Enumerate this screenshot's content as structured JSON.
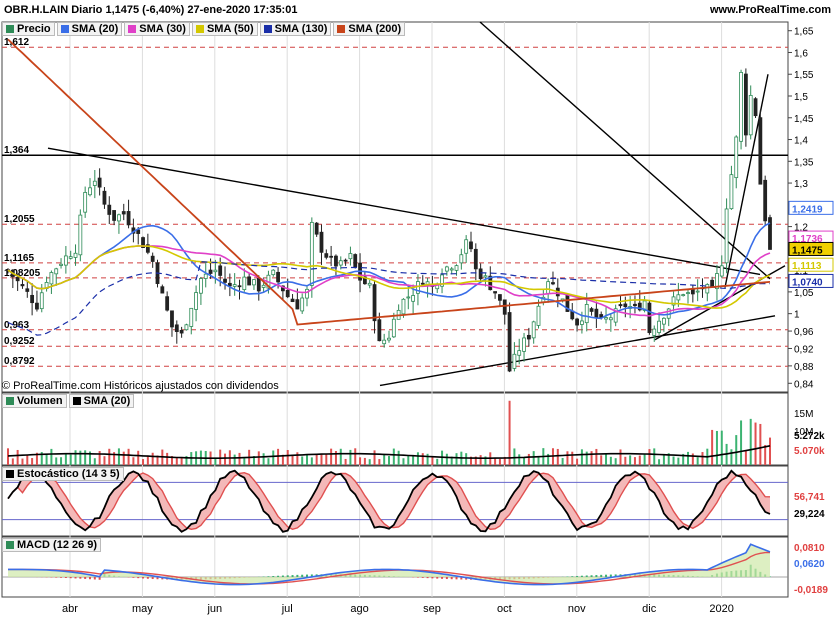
{
  "header": {
    "title": "OBR.H.LAIN Diario 1,1475 (-6,40%) 27-ene-2020 17:35:01",
    "site": "www.ProRealTime.com"
  },
  "copyright": "© ProRealTime.com  Históricos ajustados con dividendos",
  "legend_price": [
    {
      "label": "Precio",
      "color": "#2e8b57"
    },
    {
      "label": "SMA (20)",
      "color": "#3a6ee8"
    },
    {
      "label": "SMA (30)",
      "color": "#e040c8"
    },
    {
      "label": "SMA (50)",
      "color": "#d4c800"
    },
    {
      "label": "SMA (130)",
      "color": "#1a2ea8"
    },
    {
      "label": "SMA (200)",
      "color": "#c8441a"
    }
  ],
  "legend_volume": [
    {
      "label": "Volumen",
      "color": "#2e8b57"
    },
    {
      "label": "SMA (20)",
      "color": "#000000"
    }
  ],
  "legend_stoch": [
    {
      "label": "Estocástico (14 3 5)",
      "color": "#000000"
    }
  ],
  "legend_macd": [
    {
      "label": "MACD (12 26 9)",
      "color": "#2e8b57"
    }
  ],
  "chart_data": {
    "type": "candlestick",
    "x_months": [
      "abr",
      "may",
      "jun",
      "jul",
      "ago",
      "sep",
      "oct",
      "nov",
      "dic",
      "2020"
    ],
    "price_ticks": [
      "1,65",
      "1,6",
      "1,55",
      "1,5",
      "1,45",
      "1,4",
      "1,35",
      "1,3",
      "1,25",
      "1,2",
      "1,15",
      "1,1",
      "1,05",
      "1",
      "0,96",
      "0,92",
      "0,88",
      "0,84"
    ],
    "left_levels": [
      "1,612",
      "1,364",
      "1,2055",
      "1,1165",
      "1,08205",
      "0,963",
      "0,9252",
      "0,8792"
    ],
    "right_labels": [
      {
        "text": "1,2419",
        "color": "#3a6ee8"
      },
      {
        "text": "1,1736",
        "color": "#e040c8"
      },
      {
        "text": "1,1475",
        "color": "#000000",
        "bg": "#f0d000"
      },
      {
        "text": "1,1113",
        "color": "#d4c800"
      },
      {
        "text": "1,0740",
        "color": "#1a2ea8"
      }
    ],
    "volume_ticks": [
      "15M",
      "10M"
    ],
    "volume_labels": [
      {
        "text": "5.272k",
        "color": "#000000"
      },
      {
        "text": "5.070k",
        "color": "#e04040"
      }
    ],
    "stoch_labels": [
      {
        "text": "56,741",
        "color": "#e04040"
      },
      {
        "text": "29,224",
        "color": "#000000"
      }
    ],
    "macd_labels": [
      {
        "text": "0,0810",
        "color": "#e04040"
      },
      {
        "text": "0,0620",
        "color": "#3a6ee8"
      },
      {
        "text": "-0,0189",
        "color": "#e04040"
      }
    ],
    "price_path": [
      [
        0,
        1.1
      ],
      [
        6,
        1.02
      ],
      [
        8,
        1.08
      ],
      [
        11,
        1.12
      ],
      [
        14,
        1.15
      ],
      [
        16,
        1.28
      ],
      [
        18,
        1.31
      ],
      [
        20,
        1.25
      ],
      [
        22,
        1.22
      ],
      [
        24,
        1.23
      ],
      [
        27,
        1.18
      ],
      [
        30,
        1.12
      ],
      [
        32,
        1.04
      ],
      [
        34,
        0.97
      ],
      [
        36,
        0.95
      ],
      [
        38,
        1.02
      ],
      [
        40,
        1.08
      ],
      [
        43,
        1.1
      ],
      [
        46,
        1.06
      ],
      [
        49,
        1.08
      ],
      [
        52,
        1.06
      ],
      [
        55,
        1.09
      ],
      [
        58,
        1.04
      ],
      [
        60,
        1.02
      ],
      [
        62,
        1.05
      ],
      [
        63,
        1.2
      ],
      [
        65,
        1.15
      ],
      [
        67,
        1.12
      ],
      [
        69,
        1.11
      ],
      [
        71,
        1.13
      ],
      [
        73,
        1.08
      ],
      [
        75,
        1.06
      ],
      [
        77,
        0.93
      ],
      [
        79,
        0.95
      ],
      [
        81,
        1.02
      ],
      [
        84,
        1.05
      ],
      [
        86,
        1.08
      ],
      [
        88,
        1.06
      ],
      [
        90,
        1.1
      ],
      [
        93,
        1.12
      ],
      [
        95,
        1.16
      ],
      [
        96,
        1.15
      ],
      [
        97,
        1.1
      ],
      [
        99,
        1.08
      ],
      [
        101,
        1.05
      ],
      [
        103,
        1.0
      ],
      [
        104,
        0.87
      ],
      [
        106,
        0.92
      ],
      [
        108,
        0.95
      ],
      [
        110,
        1.02
      ],
      [
        112,
        1.08
      ],
      [
        114,
        1.05
      ],
      [
        116,
        1.01
      ],
      [
        118,
        0.98
      ],
      [
        120,
        1.01
      ],
      [
        123,
        0.98
      ],
      [
        126,
        1.0
      ],
      [
        128,
        1.02
      ],
      [
        130,
        1.01
      ],
      [
        132,
        1.03
      ],
      [
        133,
        0.96
      ],
      [
        136,
        1.0
      ],
      [
        138,
        1.03
      ],
      [
        140,
        1.05
      ],
      [
        142,
        1.04
      ],
      [
        144,
        1.06
      ],
      [
        146,
        1.05
      ],
      [
        148,
        1.12
      ],
      [
        149,
        1.25
      ],
      [
        150,
        1.32
      ],
      [
        151,
        1.4
      ],
      [
        152,
        1.55
      ],
      [
        153,
        1.42
      ],
      [
        154,
        1.5
      ],
      [
        155,
        1.46
      ],
      [
        156,
        1.3
      ],
      [
        157,
        1.22
      ],
      [
        158,
        1.1475
      ]
    ]
  }
}
